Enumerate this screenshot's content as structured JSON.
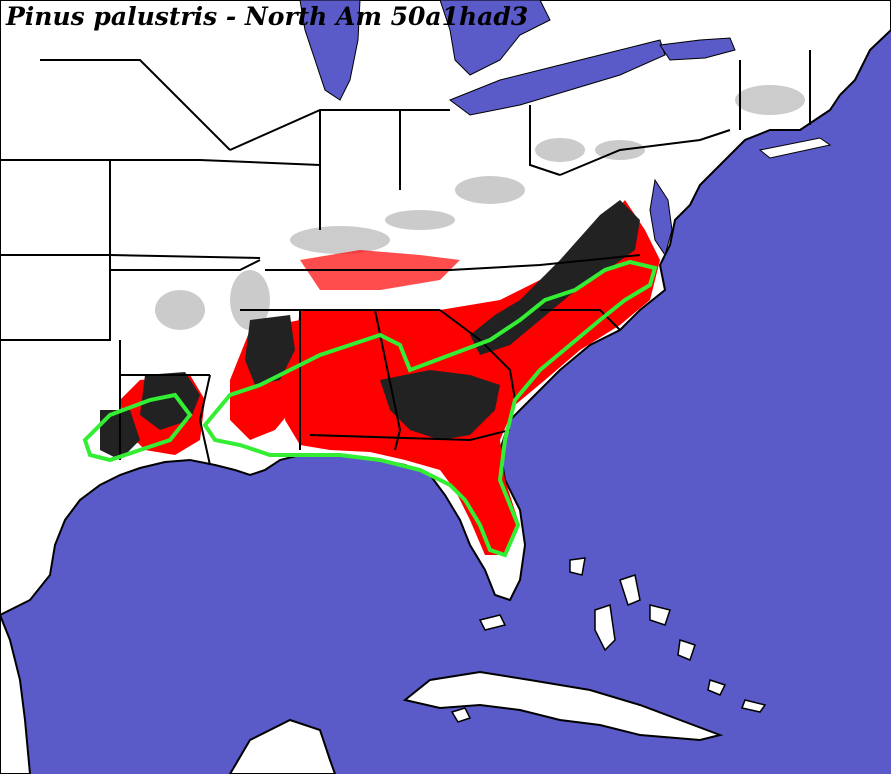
{
  "title": "Pinus palustris - North Am 50a1had3",
  "colors": {
    "water": "#5a5ac8",
    "land": "#ffffff",
    "border": "#000000",
    "suitable": "#ff0000",
    "dense": "#222222",
    "range_outline": "#33ee33",
    "relief": "#888888"
  }
}
